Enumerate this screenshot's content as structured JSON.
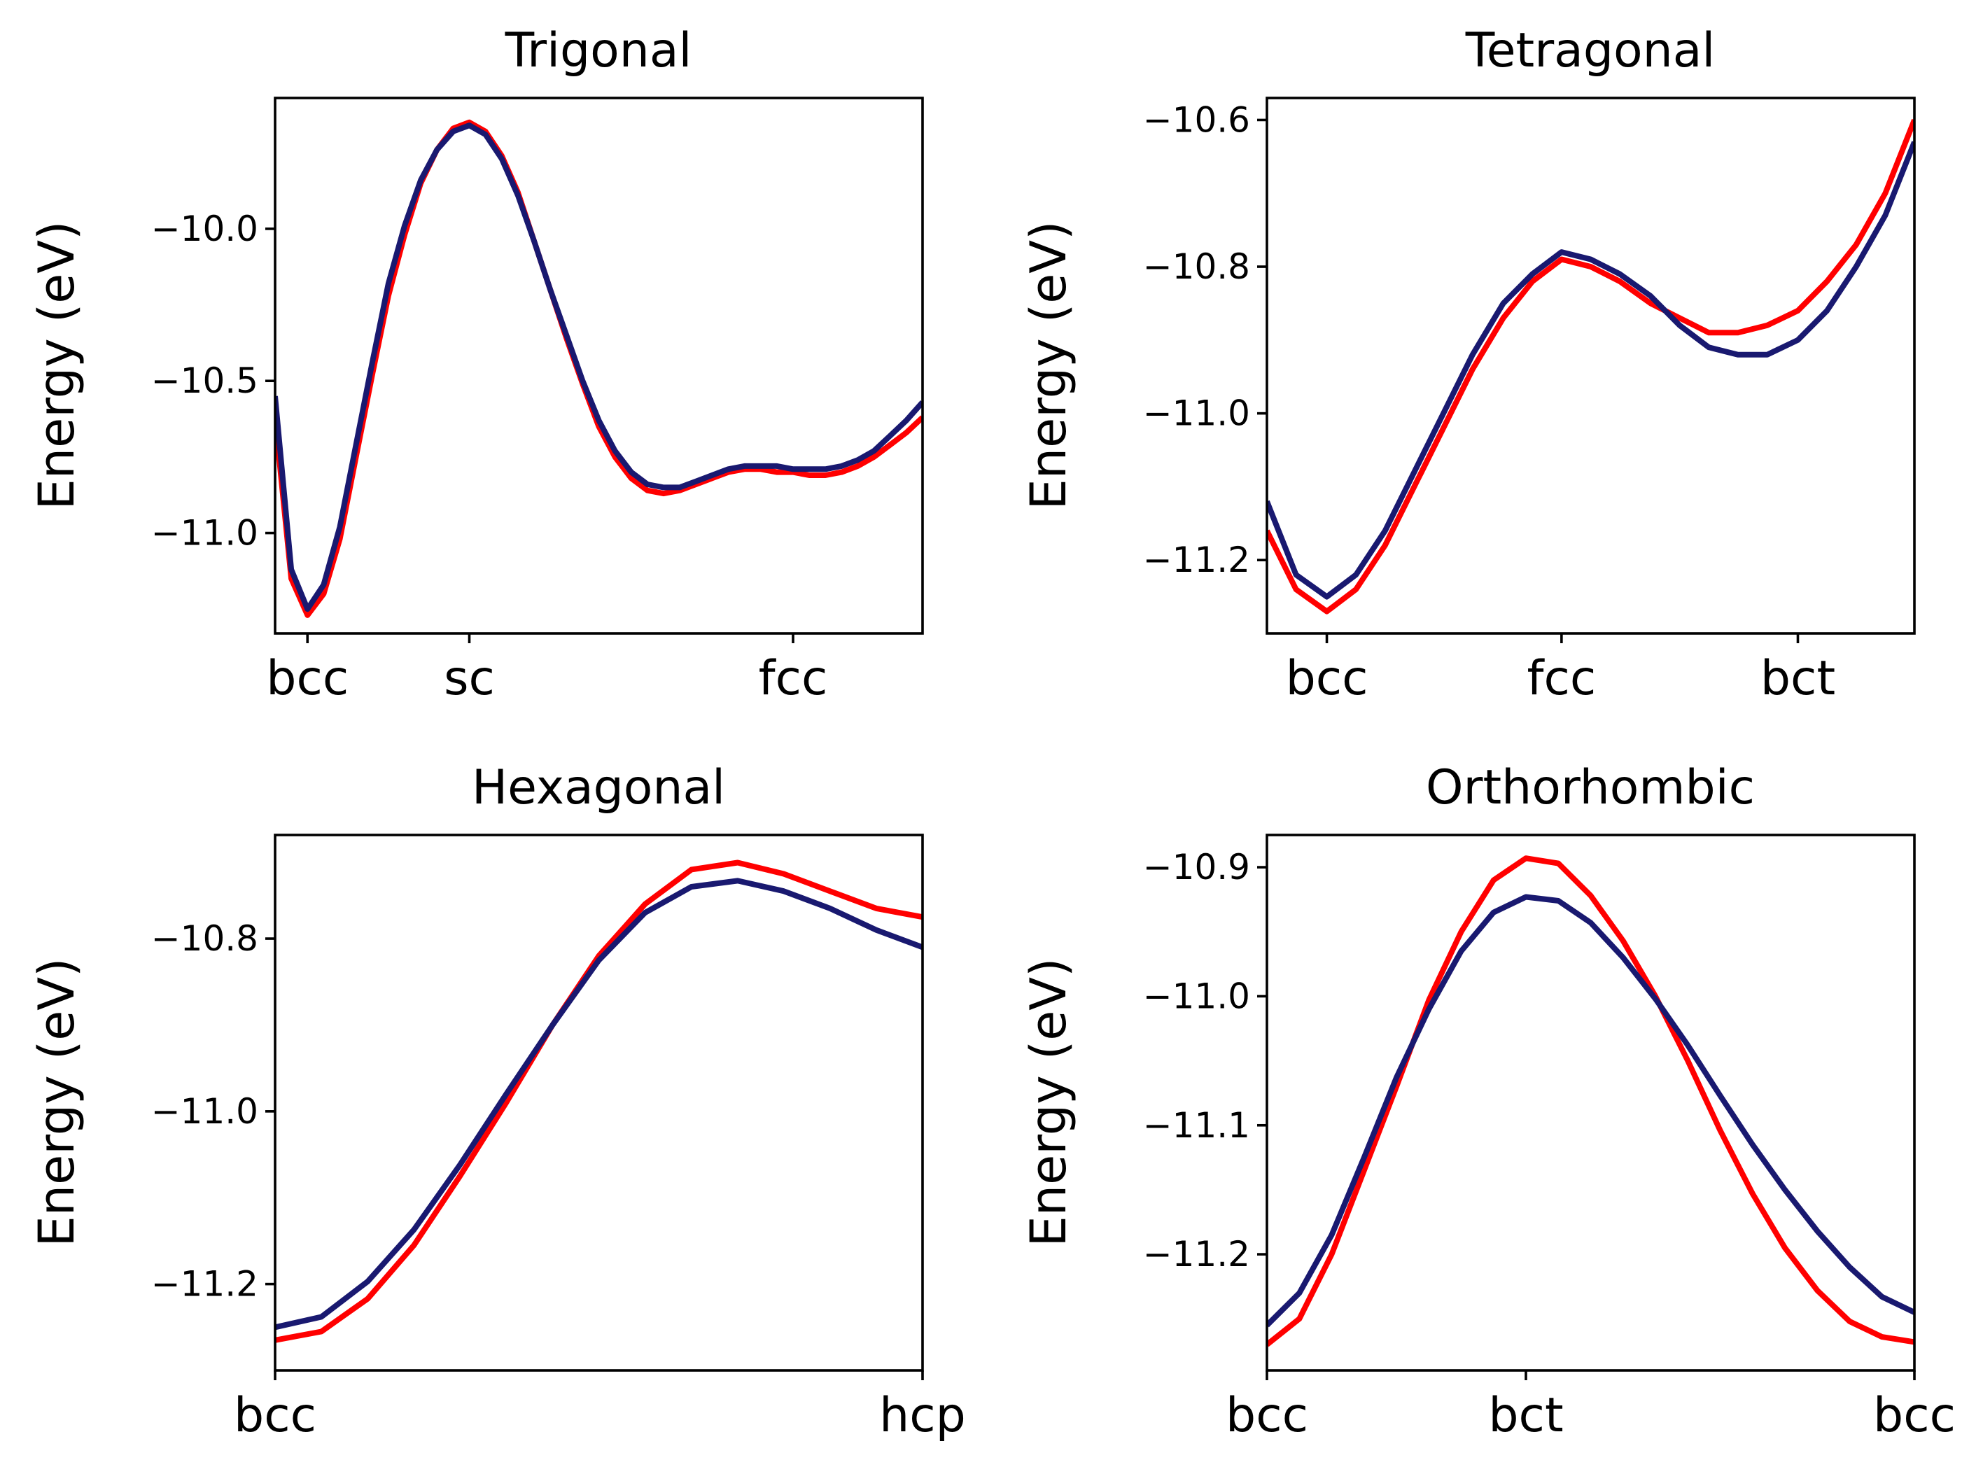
{
  "chart_data": [
    {
      "type": "line",
      "title": "Trigonal",
      "ylabel": "Energy (eV)",
      "xlim": [
        0,
        40
      ],
      "ylim": [
        -11.33,
        -9.57
      ],
      "yticks": [
        -11.0,
        -10.5,
        -10.0
      ],
      "ytick_labels": [
        "−11.0",
        "−10.5",
        "−10.0"
      ],
      "xticks": [
        2,
        12,
        32
      ],
      "xtick_labels": [
        "bcc",
        "sc",
        "fcc"
      ],
      "series": [
        {
          "color": "#ff0000",
          "x": [
            0,
            1,
            2,
            3,
            4,
            5,
            6,
            7,
            8,
            9,
            10,
            11,
            12,
            13,
            14,
            15,
            16,
            17,
            18,
            19,
            20,
            21,
            22,
            23,
            24,
            25,
            26,
            27,
            28,
            29,
            30,
            31,
            32,
            33,
            34,
            35,
            36,
            37,
            38,
            39,
            40
          ],
          "y": [
            -10.62,
            -11.15,
            -11.27,
            -11.2,
            -11.02,
            -10.75,
            -10.48,
            -10.22,
            -10.02,
            -9.85,
            -9.74,
            -9.67,
            -9.65,
            -9.68,
            -9.76,
            -9.88,
            -10.04,
            -10.2,
            -10.36,
            -10.51,
            -10.65,
            -10.75,
            -10.82,
            -10.86,
            -10.87,
            -10.86,
            -10.84,
            -10.82,
            -10.8,
            -10.79,
            -10.79,
            -10.8,
            -10.8,
            -10.81,
            -10.81,
            -10.8,
            -10.78,
            -10.75,
            -10.71,
            -10.67,
            -10.62
          ]
        },
        {
          "color": "#191970",
          "x": [
            0,
            1,
            2,
            3,
            4,
            5,
            6,
            7,
            8,
            9,
            10,
            11,
            12,
            13,
            14,
            15,
            16,
            17,
            18,
            19,
            20,
            21,
            22,
            23,
            24,
            25,
            26,
            27,
            28,
            29,
            30,
            31,
            32,
            33,
            34,
            35,
            36,
            37,
            38,
            39,
            40
          ],
          "y": [
            -10.55,
            -11.12,
            -11.25,
            -11.17,
            -10.98,
            -10.71,
            -10.44,
            -10.18,
            -9.99,
            -9.84,
            -9.74,
            -9.68,
            -9.66,
            -9.69,
            -9.77,
            -9.89,
            -10.04,
            -10.2,
            -10.35,
            -10.5,
            -10.63,
            -10.73,
            -10.8,
            -10.84,
            -10.85,
            -10.85,
            -10.83,
            -10.81,
            -10.79,
            -10.78,
            -10.78,
            -10.78,
            -10.79,
            -10.79,
            -10.79,
            -10.78,
            -10.76,
            -10.73,
            -10.68,
            -10.63,
            -10.57
          ]
        }
      ]
    },
    {
      "type": "line",
      "title": "Tetragonal",
      "ylabel": "Energy (eV)",
      "xlim": [
        0,
        40
      ],
      "ylim": [
        -11.3,
        -10.57
      ],
      "yticks": [
        -11.2,
        -11.0,
        -10.8,
        -10.6
      ],
      "ytick_labels": [
        "−11.2",
        "−11.0",
        "−10.8",
        "−10.6"
      ],
      "xticks": [
        3.7,
        18.2,
        32.8
      ],
      "xtick_labels": [
        "bcc",
        "fcc",
        "bct"
      ],
      "series": [
        {
          "color": "#ff0000",
          "x": [
            0,
            1.8,
            3.7,
            5.5,
            7.3,
            9.1,
            10.9,
            12.7,
            14.6,
            16.4,
            18.2,
            20.0,
            21.8,
            23.7,
            25.5,
            27.3,
            29.1,
            30.9,
            32.8,
            34.6,
            36.4,
            38.2,
            40
          ],
          "y": [
            -11.16,
            -11.24,
            -11.27,
            -11.24,
            -11.18,
            -11.1,
            -11.02,
            -10.94,
            -10.87,
            -10.82,
            -10.79,
            -10.8,
            -10.82,
            -10.85,
            -10.87,
            -10.89,
            -10.89,
            -10.88,
            -10.86,
            -10.82,
            -10.77,
            -10.7,
            -10.6
          ]
        },
        {
          "color": "#191970",
          "x": [
            0,
            1.8,
            3.7,
            5.5,
            7.3,
            9.1,
            10.9,
            12.7,
            14.6,
            16.4,
            18.2,
            20.0,
            21.8,
            23.7,
            25.5,
            27.3,
            29.1,
            30.9,
            32.8,
            34.6,
            36.4,
            38.2,
            40
          ],
          "y": [
            -11.12,
            -11.22,
            -11.25,
            -11.22,
            -11.16,
            -11.08,
            -11.0,
            -10.92,
            -10.85,
            -10.81,
            -10.78,
            -10.79,
            -10.81,
            -10.84,
            -10.88,
            -10.91,
            -10.92,
            -10.92,
            -10.9,
            -10.86,
            -10.8,
            -10.73,
            -10.63
          ]
        }
      ]
    },
    {
      "type": "line",
      "title": "Hexagonal",
      "ylabel": "Energy (eV)",
      "xlim": [
        0,
        20
      ],
      "ylim": [
        -11.3,
        -10.68
      ],
      "yticks": [
        -11.2,
        -11.0,
        -10.8
      ],
      "ytick_labels": [
        "−11.2",
        "−11.0",
        "−10.8"
      ],
      "xticks": [
        0,
        20
      ],
      "xtick_labels": [
        "bcc",
        "hcp"
      ],
      "series": [
        {
          "color": "#ff0000",
          "x": [
            0,
            1.43,
            2.86,
            4.29,
            5.71,
            7.14,
            8.57,
            10.0,
            11.43,
            12.86,
            14.29,
            15.71,
            17.14,
            18.57,
            20
          ],
          "y": [
            -11.265,
            -11.255,
            -11.217,
            -11.155,
            -11.075,
            -10.99,
            -10.9,
            -10.82,
            -10.76,
            -10.72,
            -10.712,
            -10.725,
            -10.745,
            -10.765,
            -10.775
          ]
        },
        {
          "color": "#191970",
          "x": [
            0,
            1.43,
            2.86,
            4.29,
            5.71,
            7.14,
            8.57,
            10.0,
            11.43,
            12.86,
            14.29,
            15.71,
            17.14,
            18.57,
            20
          ],
          "y": [
            -11.25,
            -11.238,
            -11.197,
            -11.137,
            -11.062,
            -10.98,
            -10.9,
            -10.825,
            -10.77,
            -10.74,
            -10.733,
            -10.745,
            -10.765,
            -10.79,
            -10.81
          ]
        }
      ]
    },
    {
      "type": "line",
      "title": "Orthorhombic",
      "ylabel": "Energy (eV)",
      "xlim": [
        0,
        40
      ],
      "ylim": [
        -11.29,
        -10.875
      ],
      "yticks": [
        -11.2,
        -11.1,
        -11.0,
        -10.9
      ],
      "ytick_labels": [
        "−11.2",
        "−11.1",
        "−11.0",
        "−10.9"
      ],
      "xticks": [
        0,
        16,
        40
      ],
      "xtick_labels": [
        "bcc",
        "bct",
        "bcc"
      ],
      "series": [
        {
          "color": "#ff0000",
          "x": [
            0,
            2,
            4,
            6,
            8,
            10,
            12,
            14,
            16,
            18,
            20,
            22,
            24,
            26,
            28,
            30,
            32,
            34,
            36,
            38,
            40
          ],
          "y": [
            -11.27,
            -11.25,
            -11.2,
            -11.135,
            -11.07,
            -11.003,
            -10.95,
            -10.91,
            -10.893,
            -10.897,
            -10.922,
            -10.957,
            -11.0,
            -11.05,
            -11.104,
            -11.153,
            -11.195,
            -11.228,
            -11.252,
            -11.264,
            -11.268
          ]
        },
        {
          "color": "#191970",
          "x": [
            0,
            2,
            4,
            6,
            8,
            10,
            12,
            14,
            16,
            18,
            20,
            22,
            24,
            26,
            28,
            30,
            32,
            34,
            36,
            38,
            40
          ],
          "y": [
            -11.255,
            -11.23,
            -11.185,
            -11.125,
            -11.063,
            -11.01,
            -10.965,
            -10.935,
            -10.923,
            -10.926,
            -10.943,
            -10.97,
            -11.002,
            -11.038,
            -11.077,
            -11.115,
            -11.15,
            -11.182,
            -11.21,
            -11.233,
            -11.245
          ]
        }
      ]
    }
  ]
}
